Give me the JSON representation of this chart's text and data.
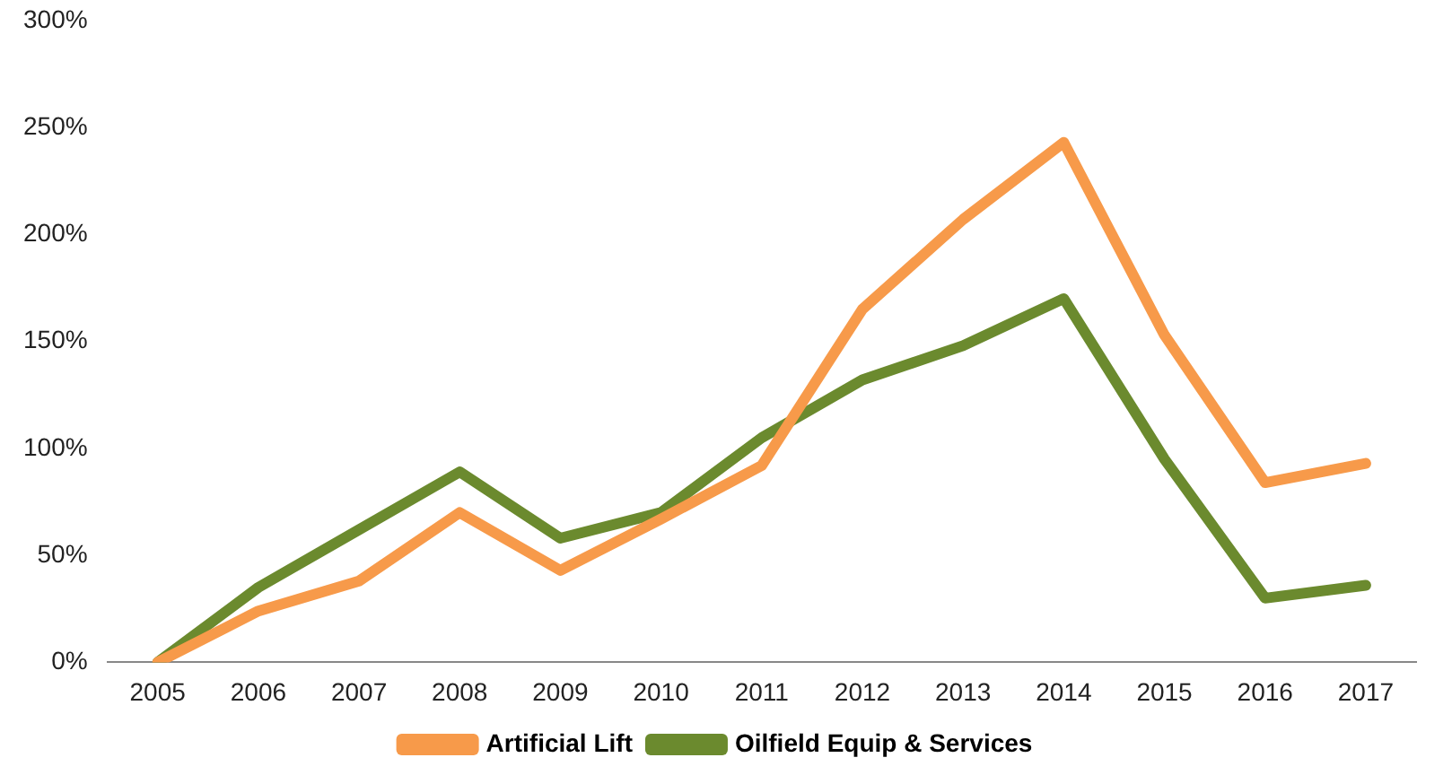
{
  "chart_data": {
    "type": "line",
    "categories": [
      "2005",
      "2006",
      "2007",
      "2008",
      "2009",
      "2010",
      "2011",
      "2012",
      "2013",
      "2014",
      "2015",
      "2016",
      "2017"
    ],
    "series": [
      {
        "name": "Artificial Lift",
        "color": "#f79a4a",
        "values": [
          0,
          24,
          38,
          70,
          43,
          67,
          92,
          165,
          207,
          243,
          153,
          84,
          93
        ]
      },
      {
        "name": "Oilfield Equip & Services",
        "color": "#6b8a2e",
        "values": [
          0,
          35,
          62,
          89,
          58,
          70,
          105,
          132,
          148,
          170,
          95,
          30,
          36
        ]
      }
    ],
    "ylim": [
      0,
      300
    ],
    "yticks": [
      {
        "value": 0,
        "label": "0%"
      },
      {
        "value": 50,
        "label": "50%"
      },
      {
        "value": 100,
        "label": "100%"
      },
      {
        "value": 150,
        "label": "150%"
      },
      {
        "value": 200,
        "label": "200%"
      },
      {
        "value": 250,
        "label": "250%"
      },
      {
        "value": 300,
        "label": "300%"
      }
    ],
    "grid": false,
    "legend": "bottom",
    "marker": "none",
    "line_style": "solid"
  }
}
